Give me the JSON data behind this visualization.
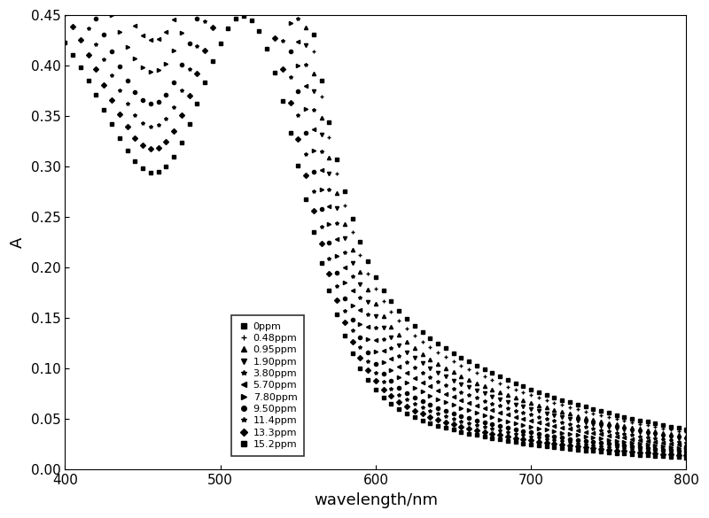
{
  "xlabel": "wavelength/nm",
  "ylabel": "A",
  "xlim": [
    400,
    800
  ],
  "ylim": [
    0.0,
    0.45
  ],
  "xticks": [
    400,
    500,
    600,
    700,
    800
  ],
  "yticks": [
    0.0,
    0.05,
    0.1,
    0.15,
    0.2,
    0.25,
    0.3,
    0.35,
    0.4,
    0.45
  ],
  "legend_labels": [
    "0ppm",
    "0.48ppm",
    "0.95ppm",
    "1.90ppm",
    "3.80ppm",
    "5.70ppm",
    "7.80ppm",
    "9.50ppm",
    "11.4ppm",
    "13.3ppm",
    "15.2ppm"
  ],
  "legend_markers": [
    "s",
    "+",
    "^",
    "v",
    "*",
    "<",
    ">",
    "o",
    "*",
    "D",
    "s"
  ],
  "peaks": [
    0.41,
    0.405,
    0.4,
    0.395,
    0.388,
    0.378,
    0.365,
    0.35,
    0.33,
    0.31,
    0.285
  ],
  "tails": [
    0.04,
    0.037,
    0.033,
    0.03,
    0.027,
    0.024,
    0.021,
    0.018,
    0.016,
    0.014,
    0.012
  ],
  "color": "black",
  "markersize": 3,
  "xlabel_fontsize": 13,
  "ylabel_fontsize": 13,
  "tick_fontsize": 11
}
